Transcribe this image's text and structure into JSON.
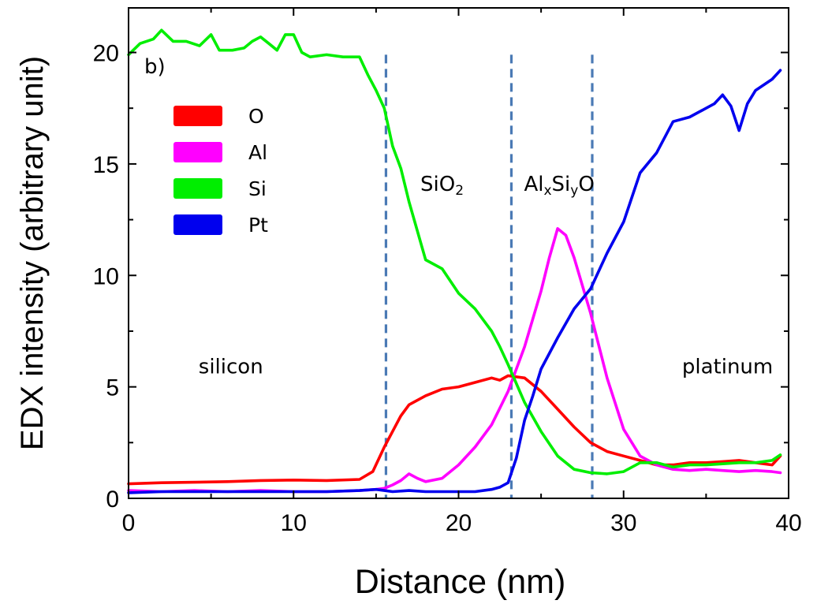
{
  "chart_data": {
    "type": "line",
    "panel_label": "b)",
    "xlabel": "Distance (nm)",
    "ylabel": "EDX intensity (arbitrary unit)",
    "xlim": [
      0,
      40
    ],
    "ylim": [
      0,
      22
    ],
    "x_ticks": [
      0,
      10,
      20,
      30,
      40
    ],
    "y_ticks": [
      0,
      5,
      10,
      15,
      20
    ],
    "x_tick_labels": [
      "0",
      "10",
      "20",
      "30",
      "40"
    ],
    "y_tick_labels": [
      "0",
      "5",
      "10",
      "15",
      "20"
    ],
    "grid": false,
    "legend_position": "top-left",
    "series": [
      {
        "name": "O",
        "color": "#ff0000",
        "x": [
          0,
          2,
          4,
          6,
          8,
          10,
          12,
          14,
          14.8,
          15.5,
          16,
          16.5,
          17,
          18,
          19,
          20,
          21,
          22,
          22.5,
          23,
          24,
          25,
          26,
          27,
          28,
          29,
          30,
          31,
          32,
          33,
          34,
          35,
          36,
          37,
          38,
          39,
          39.5
        ],
        "y": [
          0.65,
          0.7,
          0.72,
          0.75,
          0.8,
          0.82,
          0.8,
          0.85,
          1.2,
          2.3,
          3.0,
          3.7,
          4.2,
          4.6,
          4.9,
          5.0,
          5.2,
          5.4,
          5.3,
          5.5,
          5.4,
          4.8,
          4.0,
          3.2,
          2.5,
          2.1,
          1.9,
          1.7,
          1.5,
          1.5,
          1.6,
          1.6,
          1.65,
          1.7,
          1.6,
          1.5,
          1.9
        ]
      },
      {
        "name": "Al",
        "color": "#ff00ff",
        "x": [
          0,
          2,
          4,
          6,
          8,
          10,
          12,
          14,
          15,
          15.5,
          16,
          16.5,
          17,
          17.5,
          18,
          19,
          20,
          21,
          22,
          23,
          24,
          25,
          25.5,
          26,
          26.5,
          27,
          28,
          29,
          30,
          31,
          32,
          33,
          34,
          35,
          36,
          37,
          38,
          39,
          39.5
        ],
        "y": [
          0.35,
          0.3,
          0.35,
          0.3,
          0.35,
          0.3,
          0.3,
          0.35,
          0.4,
          0.45,
          0.6,
          0.8,
          1.1,
          0.9,
          0.75,
          0.9,
          1.5,
          2.3,
          3.3,
          4.8,
          6.8,
          9.3,
          10.8,
          12.1,
          11.8,
          10.8,
          8.3,
          5.4,
          3.1,
          1.9,
          1.5,
          1.3,
          1.25,
          1.3,
          1.25,
          1.2,
          1.25,
          1.2,
          1.15
        ]
      },
      {
        "name": "Si",
        "color": "#00ee00",
        "x": [
          0,
          0.7,
          1.5,
          2,
          2.7,
          3.5,
          4.3,
          5,
          5.5,
          6.3,
          7,
          7.5,
          8,
          8.5,
          9,
          9.5,
          10,
          10.5,
          11,
          12,
          13,
          14,
          14.5,
          15,
          15.5,
          16,
          16.5,
          17,
          18,
          19,
          20,
          21,
          22,
          22.5,
          23,
          24,
          25,
          26,
          27,
          28,
          29,
          30,
          31,
          32,
          33,
          34,
          35,
          36,
          37,
          38,
          39,
          39.5
        ],
        "y": [
          19.9,
          20.4,
          20.6,
          21.0,
          20.5,
          20.5,
          20.3,
          20.8,
          20.1,
          20.1,
          20.2,
          20.5,
          20.7,
          20.4,
          20.1,
          20.8,
          20.8,
          20.0,
          19.8,
          19.9,
          19.8,
          19.8,
          19.0,
          18.3,
          17.5,
          15.8,
          14.8,
          13.3,
          10.7,
          10.3,
          9.2,
          8.5,
          7.5,
          6.8,
          6.0,
          4.3,
          3.0,
          1.9,
          1.3,
          1.15,
          1.1,
          1.2,
          1.6,
          1.6,
          1.4,
          1.5,
          1.5,
          1.55,
          1.6,
          1.6,
          1.7,
          1.95
        ]
      },
      {
        "name": "Pt",
        "color": "#0000ee",
        "x": [
          0,
          2,
          4,
          6,
          8,
          10,
          12,
          14,
          15,
          16,
          17,
          18,
          19,
          20,
          21,
          22,
          22.5,
          23,
          23.5,
          24,
          24.5,
          25,
          26,
          27,
          28,
          29,
          30,
          31,
          32,
          33,
          34,
          35,
          35.5,
          36,
          36.5,
          37,
          37.5,
          38,
          39,
          39.5
        ],
        "y": [
          0.25,
          0.3,
          0.3,
          0.3,
          0.3,
          0.3,
          0.3,
          0.35,
          0.4,
          0.3,
          0.35,
          0.3,
          0.3,
          0.3,
          0.3,
          0.4,
          0.5,
          0.7,
          1.8,
          3.5,
          4.6,
          5.8,
          7.2,
          8.5,
          9.4,
          11.0,
          12.4,
          14.6,
          15.5,
          16.9,
          17.1,
          17.5,
          17.7,
          18.1,
          17.6,
          16.5,
          17.7,
          18.3,
          18.8,
          19.2
        ]
      }
    ],
    "boundaries": [
      15.6,
      23.2,
      28.1
    ],
    "region_labels": [
      {
        "text": "silicon",
        "x": 6.2,
        "y": 5.6
      },
      {
        "text": "SiO",
        "sub": "2",
        "x": 19.0,
        "y": 13.8
      },
      {
        "text": "Al",
        "sub1": "x",
        "mid": "Si",
        "sub2": "y",
        "end": "O",
        "x": 26.1,
        "y": 13.8
      },
      {
        "text": "platinum",
        "x": 36.3,
        "y": 5.6
      }
    ]
  }
}
